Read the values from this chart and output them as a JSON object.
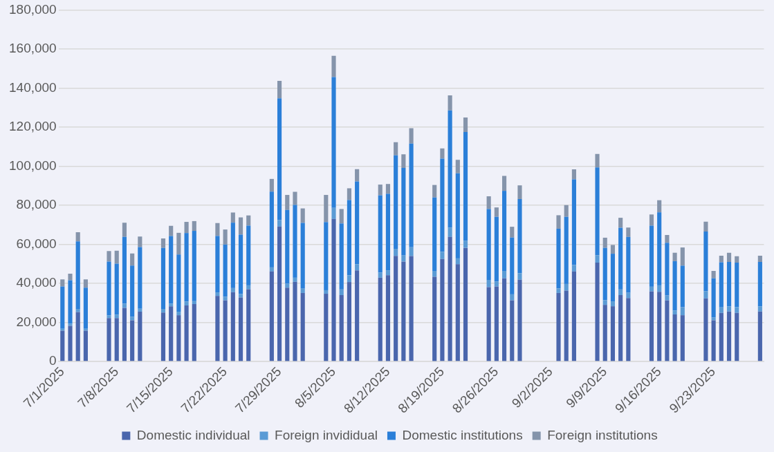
{
  "chart_data": {
    "type": "bar",
    "stacked": true,
    "grid": "y",
    "legend": "bottom",
    "categories": [
      "7/1/2025",
      null,
      null,
      null,
      null,
      null,
      null,
      "7/8/2025",
      null,
      null,
      null,
      null,
      null,
      null,
      "7/15/2025",
      null,
      null,
      null,
      null,
      null,
      null,
      "7/22/2025",
      null,
      null,
      null,
      null,
      null,
      null,
      "7/29/2025",
      null,
      null,
      null,
      null,
      null,
      null,
      "8/5/2025",
      null,
      null,
      null,
      null,
      null,
      null,
      "8/12/2025",
      null,
      null,
      null,
      null,
      null,
      null,
      "8/19/2025",
      null,
      null,
      null,
      null,
      null,
      null,
      "8/26/2025",
      null,
      null,
      null,
      null,
      null,
      null,
      "9/2/2025",
      null,
      null,
      null,
      null,
      null,
      null,
      "9/9/2025",
      null,
      null,
      null,
      null,
      null,
      null,
      "9/16/2025",
      null,
      null,
      null,
      null,
      null,
      null,
      "9/23/2025",
      null,
      null,
      null,
      null,
      null,
      null
    ],
    "ylim": [
      0,
      180000
    ],
    "yticks": [
      0,
      {
        "value": 20000,
        "label": "20,000"
      },
      {
        "value": 40000,
        "label": "40,000"
      },
      {
        "value": 60000,
        "label": "60,000"
      },
      {
        "value": 80000,
        "label": "80,000"
      },
      {
        "value": 100000,
        "label": "100,000"
      },
      {
        "value": 120000,
        "label": "120,000"
      },
      {
        "value": 140000,
        "label": "140,000"
      },
      {
        "value": 160000,
        "label": "160,000"
      },
      {
        "value": 180000,
        "label": "180,000"
      }
    ],
    "series": [
      {
        "name": "Domestic individual",
        "color": "#4a66ad",
        "values": [
          15800,
          18300,
          25300,
          15800,
          null,
          null,
          22200,
          22200,
          27500,
          21100,
          25500,
          null,
          null,
          25100,
          28300,
          23700,
          28700,
          29400,
          null,
          null,
          33600,
          31300,
          35500,
          32800,
          37000,
          null,
          null,
          46100,
          69100,
          37800,
          40800,
          35100,
          null,
          null,
          34700,
          73000,
          34000,
          40700,
          46700,
          null,
          null,
          42900,
          44200,
          54100,
          51200,
          54000,
          null,
          null,
          43400,
          52500,
          63800,
          49800,
          58200,
          null,
          null,
          38100,
          38400,
          42600,
          31300,
          41900,
          null,
          null,
          null,
          null,
          35100,
          36300,
          46100,
          null,
          null,
          50600,
          29000,
          28300,
          34000,
          32500,
          null,
          null,
          35900,
          35700,
          31300,
          24100,
          23700,
          null,
          null,
          32300,
          21100,
          24900,
          25600,
          24900,
          null,
          null,
          25600
        ]
      },
      {
        "name": "Foreign invididual",
        "color": "#5a9bd5",
        "values": [
          1000,
          1000,
          1600,
          1000,
          null,
          null,
          1400,
          1800,
          2100,
          1800,
          1500,
          null,
          null,
          1800,
          1300,
          1800,
          2000,
          1500,
          null,
          null,
          1800,
          1900,
          2100,
          1800,
          2000,
          null,
          null,
          2100,
          3400,
          2000,
          2100,
          2200,
          null,
          null,
          1800,
          5700,
          2900,
          3400,
          3100,
          null,
          null,
          2600,
          2500,
          3600,
          3100,
          4500,
          null,
          null,
          3000,
          3700,
          4800,
          3000,
          3700,
          null,
          null,
          3700,
          2600,
          3800,
          3100,
          3300,
          null,
          null,
          null,
          null,
          2300,
          3400,
          3300,
          null,
          null,
          3800,
          2400,
          2500,
          2900,
          2700,
          null,
          null,
          2400,
          3300,
          2500,
          2000,
          4100,
          null,
          null,
          3700,
          1400,
          2800,
          2600,
          2900,
          null,
          null,
          2600
        ]
      },
      {
        "name": "Domestic institutions",
        "color": "#2b7fd8",
        "values": [
          21600,
          22300,
          34600,
          21000,
          null,
          null,
          27600,
          26100,
          34200,
          26200,
          31600,
          null,
          null,
          31300,
          34700,
          29300,
          35100,
          36000,
          null,
          null,
          28900,
          26700,
          33500,
          30400,
          30600,
          null,
          null,
          38800,
          62300,
          37800,
          37300,
          33700,
          null,
          null,
          34900,
          66900,
          33800,
          38600,
          42400,
          null,
          null,
          39600,
          39200,
          47900,
          44800,
          53100,
          null,
          null,
          37600,
          47700,
          60000,
          43600,
          55600,
          null,
          null,
          36300,
          33100,
          41000,
          29100,
          38000,
          null,
          null,
          null,
          null,
          30600,
          34400,
          43900,
          null,
          null,
          45000,
          26800,
          24400,
          31600,
          28600,
          null,
          null,
          31300,
          37400,
          27000,
          25300,
          21300,
          null,
          null,
          30600,
          20100,
          23100,
          22800,
          22800,
          null,
          null,
          22800
        ]
      },
      {
        "name": "Foreign institutions",
        "color": "#8594ab",
        "values": [
          3700,
          3400,
          4700,
          4300,
          null,
          null,
          5400,
          6600,
          7300,
          6200,
          5400,
          null,
          null,
          4800,
          5200,
          11100,
          5700,
          5000,
          null,
          null,
          6600,
          7700,
          5200,
          8800,
          5200,
          null,
          null,
          6500,
          8900,
          7700,
          6700,
          7400,
          null,
          null,
          13900,
          10900,
          7400,
          6000,
          6300,
          null,
          null,
          5500,
          5000,
          6700,
          7000,
          7900,
          null,
          null,
          6400,
          5200,
          7700,
          6900,
          7400,
          null,
          null,
          6500,
          4800,
          7600,
          5500,
          7000,
          null,
          null,
          null,
          null,
          6900,
          6000,
          5100,
          null,
          null,
          6900,
          5200,
          4500,
          5100,
          4800,
          null,
          null,
          5700,
          6200,
          4000,
          4300,
          9300,
          null,
          null,
          5000,
          3800,
          3400,
          4700,
          3300,
          null,
          null,
          3200
        ]
      }
    ]
  }
}
